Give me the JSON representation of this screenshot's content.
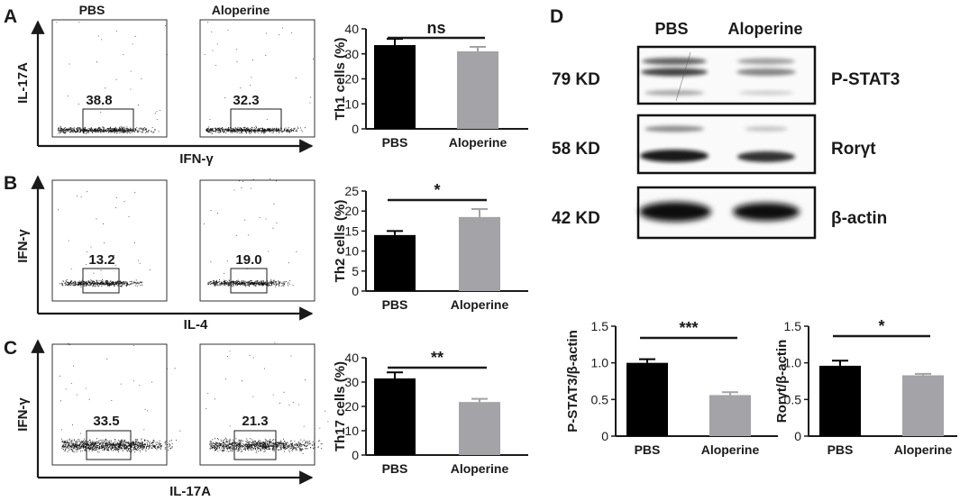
{
  "panels": {
    "A": {
      "letter": "A",
      "headers": [
        "PBS",
        "Aloperine"
      ],
      "y_label": "IL-17A",
      "x_label": "IFN-γ",
      "gate_values": [
        "38.8",
        "32.3"
      ]
    },
    "B": {
      "letter": "B",
      "y_label": "IFN-γ",
      "x_label": "IL-4",
      "gate_values": [
        "13.2",
        "19.0"
      ]
    },
    "C": {
      "letter": "C",
      "y_label": "IFN-γ",
      "x_label": "IL-17A",
      "gate_values": [
        "33.5",
        "21.3"
      ]
    },
    "D": {
      "letter": "D",
      "headers": [
        "PBS",
        "Aloperine"
      ],
      "bands": [
        {
          "kd": "79 KD",
          "protein": "P-STAT3"
        },
        {
          "kd": "58 KD",
          "protein": "Rorγt"
        },
        {
          "kd": "42 KD",
          "protein": "β-actin"
        }
      ]
    }
  },
  "colors": {
    "pbs_bar": "#000000",
    "aloperine_bar": "#a3a3a8",
    "ink": "#1a1a1a"
  },
  "chart_data": [
    {
      "type": "bar",
      "categories": [
        "PBS",
        "Aloperine"
      ],
      "values": [
        33.5,
        31
      ],
      "errors": [
        2.5,
        1.8
      ],
      "ylabel": "Th1 cells (%)",
      "ylim": [
        0,
        40
      ],
      "yticks": [
        0,
        10,
        20,
        30,
        40
      ],
      "significance": "ns"
    },
    {
      "type": "bar",
      "categories": [
        "PBS",
        "Aloperine"
      ],
      "values": [
        14,
        18.5
      ],
      "errors": [
        1,
        2
      ],
      "ylabel": "Th2 cells (%)",
      "ylim": [
        0,
        25
      ],
      "yticks": [
        0,
        5,
        10,
        15,
        20,
        25
      ],
      "significance": "*"
    },
    {
      "type": "bar",
      "categories": [
        "PBS",
        "Aloperine"
      ],
      "values": [
        31.5,
        21.8
      ],
      "errors": [
        2.5,
        1.3
      ],
      "ylabel": "Th17 cells (%)",
      "ylim": [
        0,
        40
      ],
      "yticks": [
        0,
        10,
        20,
        30,
        40
      ],
      "significance": "**"
    },
    {
      "type": "bar",
      "categories": [
        "PBS",
        "Aloperine"
      ],
      "values": [
        1.0,
        0.56
      ],
      "errors": [
        0.05,
        0.04
      ],
      "ylabel": "P-STAT3/β-actin",
      "ylim": [
        0,
        1.5
      ],
      "yticks": [
        "0",
        "0.5",
        "1.0",
        "1.5"
      ],
      "significance": "***"
    },
    {
      "type": "bar",
      "categories": [
        "PBS",
        "Aloperine"
      ],
      "values": [
        0.96,
        0.83
      ],
      "errors": [
        0.07,
        0.02
      ],
      "ylabel": "Rorγt/β-actin",
      "ylim": [
        0,
        1.5
      ],
      "yticks": [
        "0",
        "0.5",
        "1.0",
        "1.5"
      ],
      "significance": "*"
    }
  ]
}
